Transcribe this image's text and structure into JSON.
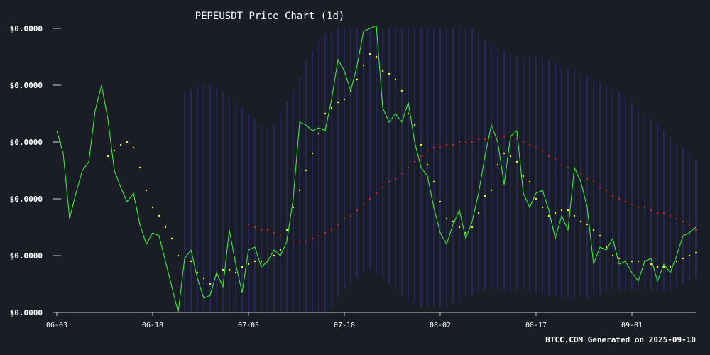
{
  "chart_data": {
    "type": "line",
    "title": "PEPEUSDT Price Chart (1d)",
    "footer": "BTCC.COM Generated on 2025-09-10",
    "xlabel": "",
    "ylabel": "",
    "x_ticks": [
      "06-03",
      "06-18",
      "07-03",
      "07-18",
      "08-02",
      "08-17",
      "09-01"
    ],
    "y_ticks": [
      "$0.0000",
      "$0.0000",
      "$0.0000",
      "$0.0000",
      "$0.0000",
      "$0.0000"
    ],
    "ylim": [
      0,
      100
    ],
    "x_start": "06-03",
    "x_days": 100,
    "grid": false,
    "colors": {
      "price": "#33ff33",
      "short_ma": "#ffff00",
      "long_ma": "#dd2222",
      "band": "#2a2f8a",
      "background": "#1a1d26"
    },
    "series": [
      {
        "key": "price",
        "values": [
          64,
          56,
          33,
          42,
          50,
          53,
          71,
          80,
          68,
          50,
          44,
          39,
          42,
          31,
          24,
          28,
          27,
          18,
          9,
          0,
          19,
          22,
          12,
          5,
          6,
          14,
          9,
          29,
          17,
          7,
          22,
          23,
          16,
          18,
          22,
          20,
          25,
          40,
          67,
          66,
          64,
          65,
          64,
          75,
          89,
          85,
          78,
          87,
          99,
          100,
          101,
          72,
          67,
          70,
          67,
          74,
          60,
          51,
          48,
          37,
          28,
          24,
          31,
          36,
          26,
          32,
          42,
          55,
          66,
          60,
          45,
          62,
          64,
          42,
          37,
          42,
          43,
          36,
          26,
          34,
          29,
          51,
          46,
          37,
          17,
          23,
          22,
          26,
          17,
          18,
          14,
          11,
          18,
          19,
          11,
          17,
          14,
          20,
          27,
          28,
          30
        ]
      },
      {
        "key": "short_ma",
        "values": [
          null,
          null,
          null,
          null,
          null,
          null,
          null,
          null,
          55,
          57,
          59,
          60,
          58,
          51,
          43,
          37,
          34,
          30,
          26,
          20,
          18,
          18,
          14,
          12,
          10,
          13,
          15,
          15,
          14,
          16,
          17,
          18,
          18,
          18,
          20,
          22,
          29,
          37,
          43,
          50,
          56,
          63,
          70,
          72,
          74,
          75,
          78,
          82,
          87,
          91,
          90,
          85,
          84,
          82,
          78,
          70,
          66,
          59,
          52,
          46,
          39,
          33,
          32,
          30,
          28,
          30,
          35,
          41,
          43,
          52,
          56,
          55,
          53,
          48,
          46,
          40,
          37,
          34,
          35,
          36,
          36,
          34,
          32,
          31,
          29,
          27,
          23,
          20,
          19,
          18,
          18,
          18,
          18,
          17,
          16,
          16,
          16,
          18,
          19,
          20,
          21
        ]
      },
      {
        "key": "long_ma",
        "values": [
          null,
          null,
          null,
          null,
          null,
          null,
          null,
          null,
          null,
          null,
          null,
          null,
          null,
          null,
          null,
          null,
          null,
          null,
          null,
          null,
          null,
          null,
          null,
          null,
          null,
          null,
          null,
          null,
          null,
          null,
          31,
          30,
          29,
          29,
          28,
          27,
          26,
          25,
          25,
          25,
          26,
          27,
          28,
          29,
          31,
          33,
          34,
          36,
          38,
          40,
          42,
          44,
          46,
          47,
          49,
          51,
          53,
          55,
          57,
          58,
          58,
          59,
          59,
          60,
          60,
          60,
          61,
          61,
          62,
          62,
          62,
          62,
          61,
          60,
          59,
          58,
          57,
          55,
          54,
          52,
          51,
          50,
          49,
          47,
          46,
          44,
          43,
          41,
          40,
          39,
          38,
          37,
          37,
          36,
          35,
          35,
          34,
          33,
          32,
          31,
          29
        ]
      },
      {
        "key": "band_upper",
        "values": [
          null,
          null,
          null,
          null,
          null,
          null,
          null,
          null,
          null,
          null,
          null,
          null,
          null,
          null,
          null,
          null,
          null,
          null,
          null,
          null,
          78,
          79,
          80,
          80,
          80,
          79,
          78,
          76,
          74,
          72,
          70,
          68,
          66,
          65,
          66,
          70,
          74,
          78,
          83,
          88,
          92,
          96,
          98,
          99,
          100,
          100,
          100,
          100,
          100,
          100,
          100,
          100,
          100,
          100,
          100,
          100,
          100,
          100,
          100,
          100,
          100,
          100,
          100,
          100,
          100,
          100,
          98,
          96,
          94,
          93,
          92,
          91,
          90,
          90,
          90,
          90,
          90,
          89,
          88,
          87,
          86,
          85,
          84,
          83,
          82,
          81,
          80,
          79,
          78,
          76,
          74,
          72,
          70,
          68,
          66,
          64,
          62,
          60,
          58,
          56,
          54
        ]
      },
      {
        "key": "band_lower",
        "values": [
          null,
          null,
          null,
          null,
          null,
          null,
          null,
          null,
          null,
          null,
          null,
          null,
          null,
          null,
          null,
          null,
          null,
          null,
          null,
          null,
          0,
          0,
          0,
          0,
          0,
          0,
          0,
          0,
          0,
          0,
          0,
          0,
          0,
          0,
          0,
          0,
          0,
          0,
          0,
          0,
          0,
          0,
          0,
          2,
          5,
          8,
          10,
          12,
          14,
          15,
          14,
          12,
          10,
          8,
          6,
          4,
          3,
          2,
          2,
          2,
          2,
          2,
          3,
          4,
          5,
          6,
          7,
          8,
          8,
          8,
          8,
          8,
          8,
          8,
          7,
          7,
          6,
          6,
          5,
          5,
          5,
          5,
          5,
          5,
          6,
          6,
          7,
          8,
          8,
          8,
          8,
          8,
          8,
          8,
          8,
          8,
          8,
          9,
          10,
          11,
          12
        ]
      }
    ]
  }
}
